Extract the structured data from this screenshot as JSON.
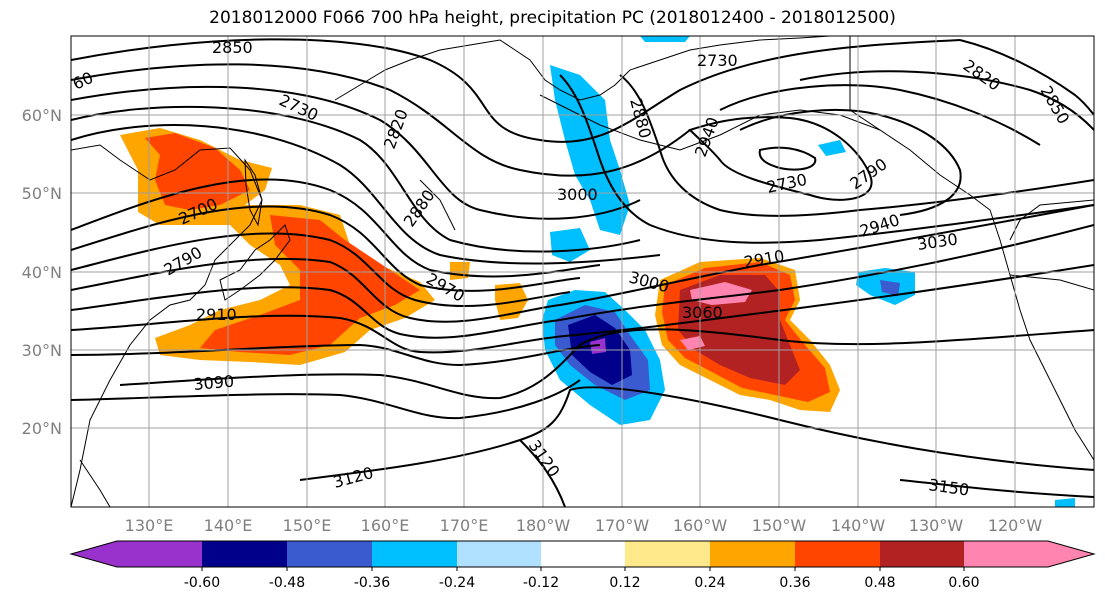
{
  "title": "2018012000 F066 700 hPa height, precipitation PC (2018012400 - 2018012500)",
  "map": {
    "latitude_labels": [
      "60°N",
      "50°N",
      "40°N",
      "30°N",
      "20°N"
    ],
    "longitude_labels": [
      "130°E",
      "140°E",
      "150°E",
      "160°E",
      "170°E",
      "180°W",
      "170°W",
      "160°W",
      "150°W",
      "140°W",
      "130°W",
      "120°W"
    ],
    "contour_labels": [
      "2850",
      "60",
      "2730",
      "2820",
      "2730",
      "2880",
      "2940",
      "2820",
      "2850",
      "2700",
      "3000",
      "2730",
      "2790",
      "2880",
      "2940",
      "2790",
      "2910",
      "3030",
      "2970",
      "3000",
      "2910",
      "3060",
      "3090",
      "3120",
      "3120",
      "3150"
    ]
  },
  "colorbar": {
    "tick_labels": [
      "-0.60",
      "-0.48",
      "-0.36",
      "-0.24",
      "-0.12",
      "0.12",
      "0.24",
      "0.36",
      "0.48",
      "0.60"
    ],
    "colors": [
      "#9932cc",
      "#00008b",
      "#3a5bcf",
      "#00bfff",
      "#b0e0ff",
      "#ffffff",
      "#ffe98a",
      "#ffa500",
      "#ff4500",
      "#b22222",
      "#ff85b0"
    ]
  }
}
